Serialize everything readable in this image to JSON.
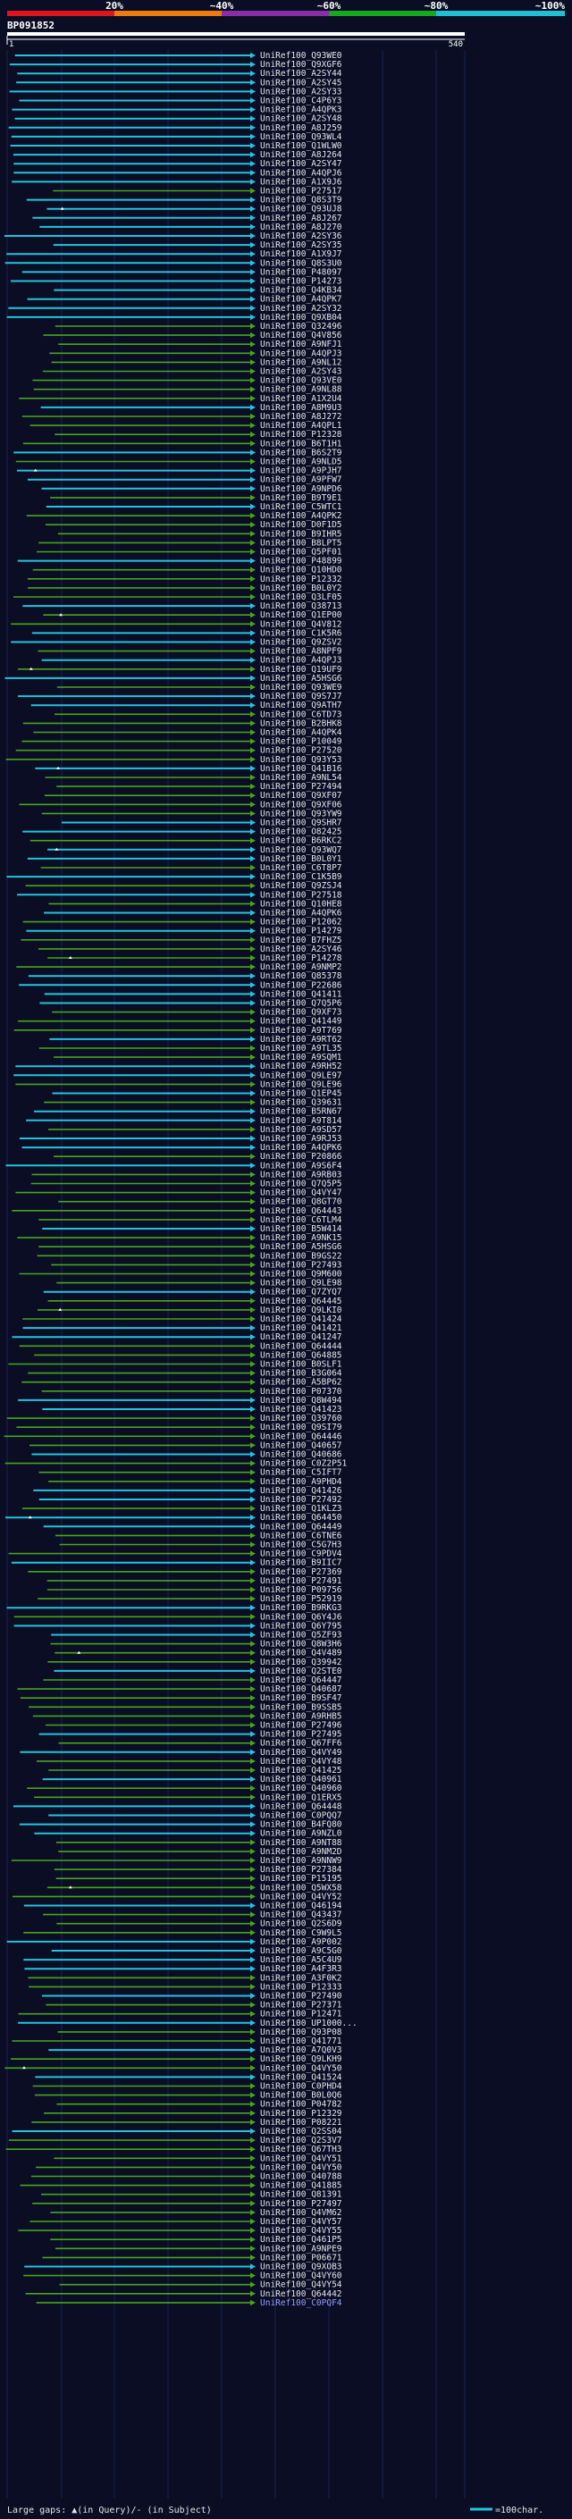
{
  "header": {
    "query_id": "BP091852",
    "scale_labels": [
      "20%",
      "~40%",
      "~60%",
      "~80%",
      "~100%"
    ],
    "scale_colors": [
      "#e0141e",
      "#ef7a10",
      "#8a2da8",
      "#16a81e",
      "#1fc0d4"
    ],
    "ruler_start": "1",
    "ruler_end": "540"
  },
  "colors": {
    "cyan": "#23c4dd",
    "green": "#46a61b",
    "white": "#ffffff",
    "background": "#0a0d24"
  },
  "legend": {
    "gap_text": "Large gaps: ▲(in Query)/- (in Subject)",
    "scale_text": "=100char."
  },
  "hits": [
    "UniRef100_Q93WE0",
    "UniRef100_Q9XGF6",
    "UniRef100_A2SY44",
    "UniRef100_A2SY45",
    "UniRef100_A2SY33",
    "UniRef100_C4P6Y3",
    "UniRef100_A4QPK3",
    "UniRef100_A2SY48",
    "UniRef100_A8J259",
    "UniRef100_Q93WL4",
    "UniRef100_Q1WLW0",
    "UniRef100_A8J264",
    "UniRef100_A2SY47",
    "UniRef100_A4QPJ6",
    "UniRef100_A1X9J6",
    "UniRef100_P27517",
    "UniRef100_Q8S3T9",
    "UniRef100_Q93UJ8",
    "UniRef100_A8J267",
    "UniRef100_A8J270",
    "UniRef100_A2SY36",
    "UniRef100_A2SY35",
    "UniRef100_A1X9J7",
    "UniRef100_Q8S3U0",
    "UniRef100_P48097",
    "UniRef100_P14273",
    "UniRef100_Q4KB34",
    "UniRef100_A4QPK7",
    "UniRef100_A2SY32",
    "UniRef100_Q9XB04",
    "UniRef100_Q32496",
    "UniRef100_Q4V856",
    "UniRef100_A9NFJ1",
    "UniRef100_A4QPJ3",
    "UniRef100_A9NL12",
    "UniRef100_A2SY43",
    "UniRef100_Q93VE0",
    "UniRef100_A9NL88",
    "UniRef100_A1X2U4",
    "UniRef100_A8M9U3",
    "UniRef100_A8J272",
    "UniRef100_A4QPL1",
    "UniRef100_P12328",
    "UniRef100_B6T1H1",
    "UniRef100_B6S2T9",
    "UniRef100_A9NLD5",
    "UniRef100_A9PJH7",
    "UniRef100_A9PFW7",
    "UniRef100_A9NPD6",
    "UniRef100_B9T9E1",
    "UniRef100_C5WTC1",
    "UniRef100_A4QPK2",
    "UniRef100_D0F1D5",
    "UniRef100_B9IHR5",
    "UniRef100_B8LPT5",
    "UniRef100_Q5PF01",
    "UniRef100_P48899",
    "UniRef100_Q10HD0",
    "UniRef100_P12332",
    "UniRef100_B0L0Y2",
    "UniRef100_Q3LF05",
    "UniRef100_Q38713",
    "UniRef100_Q1EP00",
    "UniRef100_Q4V812",
    "UniRef100_C1K5R6",
    "UniRef100_Q9ZSV2",
    "UniRef100_A8NPF9",
    "UniRef100_A4QPJ3",
    "UniRef100_Q19UF9",
    "UniRef100_A5HSG6",
    "UniRef100_Q93WE9",
    "UniRef100_Q9S7J7",
    "UniRef100_Q9ATH7",
    "UniRef100_C6TD73",
    "UniRef100_B2BHK8",
    "UniRef100_A4QPK4",
    "UniRef100_P10049",
    "UniRef100_P27520",
    "UniRef100_Q93Y53",
    "UniRef100_Q41B16",
    "UniRef100_A9NL54",
    "UniRef100_P27494",
    "UniRef100_Q9XF07",
    "UniRef100_Q9XF06",
    "UniRef100_Q93YW9",
    "UniRef100_Q9SHR7",
    "UniRef100_O82425",
    "UniRef100_B6RKC2",
    "UniRef100_Q93WQ7",
    "UniRef100_B0L0Y1",
    "UniRef100_C6T8P7",
    "UniRef100_C1K5B9",
    "UniRef100_Q9ZSJ4",
    "UniRef100_P27518",
    "UniRef100_Q10HE8",
    "UniRef100_A4QPK6",
    "UniRef100_P12062",
    "UniRef100_P14279",
    "UniRef100_B7FHZ5",
    "UniRef100_A2SY46",
    "UniRef100_P14278",
    "UniRef100_A9NMP2",
    "UniRef100_Q85378",
    "UniRef100_P22686",
    "UniRef100_Q41411",
    "UniRef100_Q7Q5P6",
    "UniRef100_Q9XF73",
    "UniRef100_Q41449",
    "UniRef100_A9T769",
    "UniRef100_A9RT62",
    "UniRef100_A9TL35",
    "UniRef100_A9SQM1",
    "UniRef100_A9RH52",
    "UniRef100_Q9LE97",
    "UniRef100_Q9LE96",
    "UniRef100_Q1EP45",
    "UniRef100_Q39631",
    "UniRef100_B5RN67",
    "UniRef100_A9T814",
    "UniRef100_A9SD57",
    "UniRef100_A9RJ53",
    "UniRef100_A4QPK6",
    "UniRef100_P20866",
    "UniRef100_A9S6F4",
    "UniRef100_A9RB03",
    "UniRef100_Q7Q5P5",
    "UniRef100_Q4VY47",
    "UniRef100_Q8GT70",
    "UniRef100_Q64443",
    "UniRef100_C6TLM4",
    "UniRef100_B5W414",
    "UniRef100_A9NK15",
    "UniRef100_A5HSG6",
    "UniRef100_B9GS22",
    "UniRef100_P27493",
    "UniRef100_Q9M600",
    "UniRef100_Q9LE98",
    "UniRef100_Q7ZYQ7",
    "UniRef100_Q64445",
    "UniRef100_Q9LKI0",
    "UniRef100_Q41424",
    "UniRef100_Q41421",
    "UniRef100_Q41247",
    "UniRef100_Q64444",
    "UniRef100_Q64885",
    "UniRef100_B0SLF1",
    "UniRef100_B3G064",
    "UniRef100_A5BP62",
    "UniRef100_P07370",
    "UniRef100_Q8W494",
    "UniRef100_Q41423",
    "UniRef100_Q39760",
    "UniRef100_Q9SI79",
    "UniRef100_Q64446",
    "UniRef100_Q40657",
    "UniRef100_Q40686",
    "UniRef100_C0Z2P51",
    "UniRef100_C5IFT7",
    "UniRef100_A9PHD4",
    "UniRef100_Q41426",
    "UniRef100_P27492",
    "UniRef100_Q1KLZ3",
    "UniRef100_Q64450",
    "UniRef100_Q64449",
    "UniRef100_C6TNE6",
    "UniRef100_C5G7H3",
    "UniRef100_C9PDV4",
    "UniRef100_B9IIC7",
    "UniRef100_P27369",
    "UniRef100_P27491",
    "UniRef100_P09756",
    "UniRef100_P52919",
    "UniRef100_B9RKG3",
    "UniRef100_Q6Y4J6",
    "UniRef100_Q6Y795",
    "UniRef100_Q5ZF93",
    "UniRef100_Q8W3H6",
    "UniRef100_Q4V489",
    "UniRef100_Q39942",
    "UniRef100_Q2STE0",
    "UniRef100_Q64447",
    "UniRef100_Q40687",
    "UniRef100_B9SF47",
    "UniRef100_B9SSB5",
    "UniRef100_A9RHB5",
    "UniRef100_P27496",
    "UniRef100_P27495",
    "UniRef100_Q67FF6",
    "UniRef100_Q4VY49",
    "UniRef100_Q4VY48",
    "UniRef100_Q41425",
    "UniRef100_Q40961",
    "UniRef100_Q40960",
    "UniRef100_Q1ERX5",
    "UniRef100_Q64448",
    "UniRef100_C0PQQ7",
    "UniRef100_B4FQ80",
    "UniRef100_A9NZL0",
    "UniRef100_A9NT88",
    "UniRef100_A9NM2D",
    "UniRef100_A9NNW9",
    "UniRef100_P27384",
    "UniRef100_P15195",
    "UniRef100_Q5WX58",
    "UniRef100_Q4VY52",
    "UniRef100_Q46194",
    "UniRef100_Q43437",
    "UniRef100_Q2S6D9",
    "UniRef100_C9W9L5",
    "UniRef100_A9P002",
    "UniRef100_A9C5G0",
    "UniRef100_A5C4U9",
    "UniRef100_A4F3R3",
    "UniRef100_A3F0K2",
    "UniRef100_P12333",
    "UniRef100_P27490",
    "UniRef100_P27371",
    "UniRef100_P12471",
    "UniRef100_UP1000...",
    "UniRef100_Q93P08",
    "UniRef100_Q41771",
    "UniRef100_A7Q0V3",
    "UniRef100_Q9LKH9",
    "UniRef100_Q4VY50",
    "UniRef100_Q41524",
    "UniRef100_C0PHD4",
    "UniRef100_B0L0Q6",
    "UniRef100_P04782",
    "UniRef100_P12329",
    "UniRef100_P08221",
    "UniRef100_Q2SS04",
    "UniRef100_Q2S3V7",
    "UniRef100_Q67TH3",
    "UniRef100_Q4VY51",
    "UniRef100_Q4VY50",
    "UniRef100_Q40788",
    "UniRef100_Q41885",
    "UniRef100_Q81391",
    "UniRef100_P27497",
    "UniRef100_Q4VM62",
    "UniRef100_Q4VY57",
    "UniRef100_Q4VY55",
    "UniRef100_Q461P5",
    "UniRef100_A9NPE9",
    "UniRef100_P06671",
    "UniRef100_Q9XOB3",
    "UniRef100_Q4VY60",
    "UniRef100_Q4VY54",
    "UniRef100_Q64442",
    "UniRef100_C0PQF4"
  ]
}
